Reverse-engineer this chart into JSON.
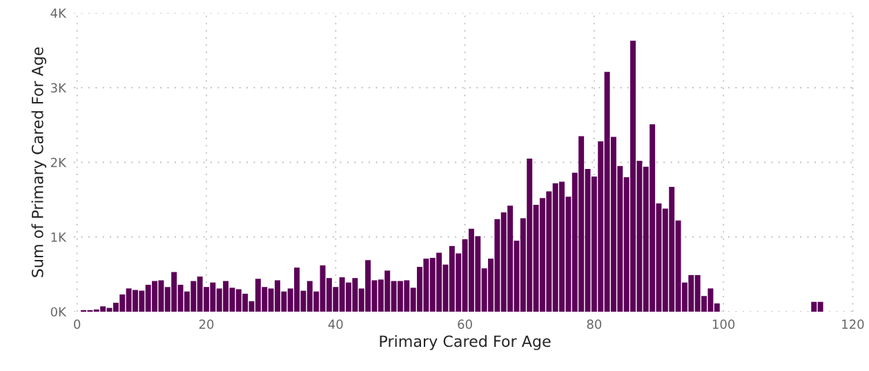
{
  "chart_data": {
    "type": "bar",
    "xlabel": "Primary Cared For Age",
    "ylabel": "Sum of Primary Cared For Age",
    "x": [
      1,
      2,
      3,
      4,
      5,
      6,
      7,
      8,
      9,
      10,
      11,
      12,
      13,
      14,
      15,
      16,
      17,
      18,
      19,
      20,
      21,
      22,
      23,
      24,
      25,
      26,
      27,
      28,
      29,
      30,
      31,
      32,
      33,
      34,
      35,
      36,
      37,
      38,
      39,
      40,
      41,
      42,
      43,
      44,
      45,
      46,
      47,
      48,
      49,
      50,
      51,
      52,
      53,
      54,
      55,
      56,
      57,
      58,
      59,
      60,
      61,
      62,
      63,
      64,
      65,
      66,
      67,
      68,
      69,
      70,
      71,
      72,
      73,
      74,
      75,
      76,
      77,
      78,
      79,
      80,
      81,
      82,
      83,
      84,
      85,
      86,
      87,
      88,
      89,
      90,
      91,
      92,
      93,
      94,
      95,
      96,
      97,
      98,
      99,
      114,
      115
    ],
    "values": [
      20,
      20,
      30,
      70,
      50,
      120,
      230,
      310,
      290,
      280,
      360,
      410,
      420,
      330,
      530,
      360,
      270,
      410,
      470,
      330,
      390,
      310,
      410,
      320,
      300,
      240,
      140,
      440,
      330,
      310,
      420,
      270,
      310,
      590,
      280,
      410,
      270,
      620,
      450,
      330,
      460,
      390,
      450,
      310,
      690,
      420,
      430,
      550,
      410,
      410,
      420,
      320,
      600,
      710,
      720,
      790,
      630,
      880,
      780,
      970,
      1110,
      1010,
      580,
      710,
      1240,
      1330,
      1420,
      950,
      1250,
      2050,
      1430,
      1520,
      1610,
      1720,
      1740,
      1540,
      1860,
      2350,
      1910,
      1810,
      2280,
      3210,
      2340,
      1950,
      1800,
      3630,
      2020,
      1940,
      2510,
      1450,
      1380,
      1670,
      1220,
      390,
      490,
      490,
      210,
      310,
      110,
      130,
      130
    ],
    "color": "#5c0058",
    "xlim": [
      -0.5,
      120.5
    ],
    "xticks": [
      0,
      20,
      40,
      60,
      80,
      100,
      120
    ],
    "ylim": [
      0,
      4000
    ],
    "yticks": [
      {
        "value": 0,
        "label": "0K"
      },
      {
        "value": 1000,
        "label": "1K"
      },
      {
        "value": 2000,
        "label": "2K"
      },
      {
        "value": 3000,
        "label": "3K"
      },
      {
        "value": 4000,
        "label": "4K"
      }
    ],
    "grid": true
  }
}
